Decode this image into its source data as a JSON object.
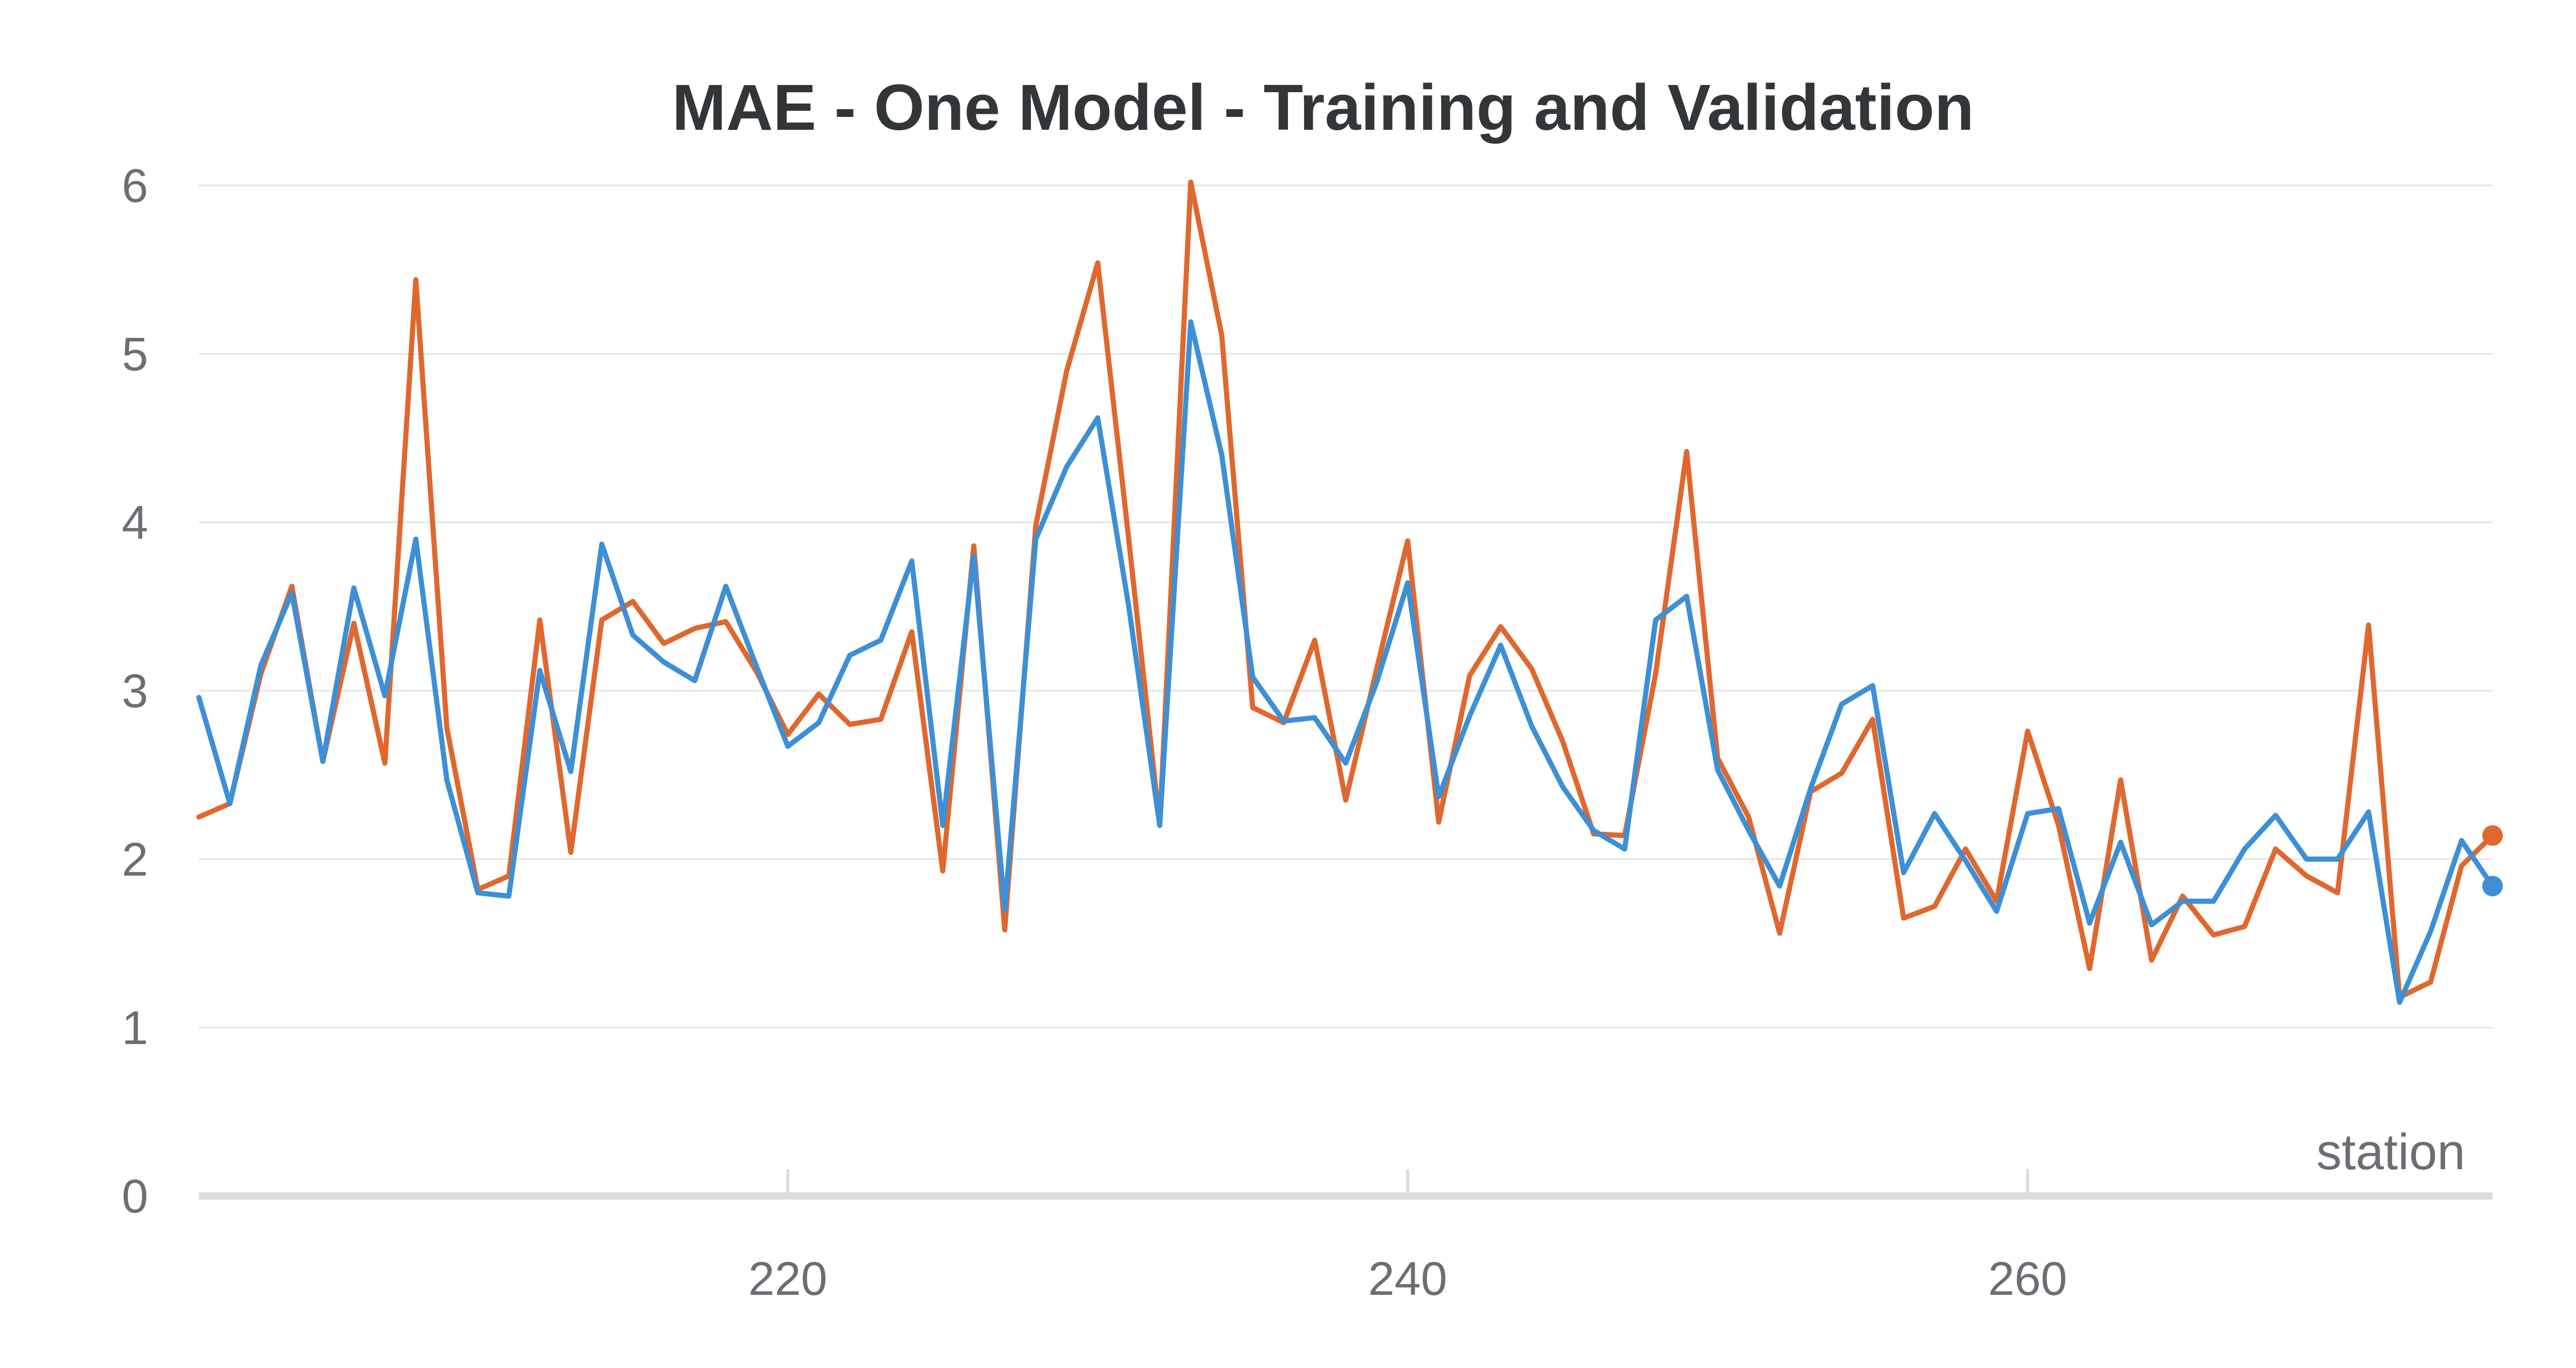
{
  "chart_data": {
    "type": "line",
    "title": "MAE - One Model - Training and Validation",
    "xlabel": "station",
    "ylabel": "",
    "xlim": [
      201,
      275
    ],
    "ylim": [
      0,
      6
    ],
    "yticks": [
      0,
      1,
      2,
      3,
      4,
      5,
      6
    ],
    "xticks": [
      220,
      240,
      260
    ],
    "grid": true,
    "legend": "none",
    "x": [
      201,
      202,
      203,
      204,
      205,
      206,
      207,
      208,
      209,
      210,
      211,
      212,
      213,
      214,
      215,
      216,
      217,
      218,
      219,
      220,
      221,
      222,
      223,
      224,
      225,
      226,
      227,
      228,
      229,
      230,
      231,
      232,
      233,
      234,
      235,
      236,
      237,
      238,
      239,
      240,
      241,
      242,
      243,
      244,
      245,
      246,
      247,
      248,
      249,
      250,
      251,
      252,
      253,
      254,
      255,
      256,
      257,
      258,
      259,
      260,
      261,
      262,
      263,
      264,
      265,
      266,
      267,
      268,
      269,
      270,
      271,
      272,
      273,
      274,
      275
    ],
    "series": [
      {
        "color": "#e0672d",
        "values": [
          2.25,
          2.33,
          3.1,
          3.62,
          2.58,
          3.4,
          2.57,
          5.44,
          2.78,
          1.82,
          1.9,
          3.42,
          2.04,
          3.42,
          3.53,
          3.28,
          3.37,
          3.41,
          3.11,
          2.74,
          2.98,
          2.8,
          2.83,
          3.35,
          1.93,
          3.86,
          1.58,
          3.98,
          4.9,
          5.54,
          3.9,
          2.2,
          6.02,
          5.11,
          2.9,
          2.81,
          3.3,
          2.35,
          3.13,
          3.89,
          2.22,
          3.09,
          3.38,
          3.13,
          2.7,
          2.15,
          2.14,
          3.1,
          4.42,
          2.6,
          2.25,
          1.56,
          2.4,
          2.51,
          2.83,
          1.65,
          1.72,
          2.06,
          1.75,
          2.76,
          2.2,
          1.35,
          2.47,
          1.4,
          1.78,
          1.55,
          1.6,
          2.06,
          1.9,
          1.8,
          3.39,
          1.18,
          1.27,
          1.96,
          2.14
        ]
      },
      {
        "color": "#3d8fd6",
        "values": [
          2.96,
          2.33,
          3.15,
          3.58,
          2.58,
          3.61,
          2.97,
          3.9,
          2.47,
          1.8,
          1.78,
          3.12,
          2.52,
          3.87,
          3.33,
          3.17,
          3.06,
          3.62,
          3.14,
          2.67,
          2.81,
          3.21,
          3.3,
          3.77,
          2.2,
          3.8,
          1.7,
          3.9,
          4.33,
          4.62,
          3.5,
          2.2,
          5.19,
          4.4,
          3.08,
          2.82,
          2.84,
          2.57,
          3.05,
          3.64,
          2.37,
          2.85,
          3.27,
          2.79,
          2.43,
          2.17,
          2.06,
          3.42,
          3.56,
          2.53,
          2.17,
          1.84,
          2.42,
          2.92,
          3.03,
          1.92,
          2.27,
          1.99,
          1.69,
          2.27,
          2.3,
          1.62,
          2.1,
          1.61,
          1.75,
          1.75,
          2.06,
          2.26,
          2.0,
          2.0,
          2.28,
          1.15,
          1.57,
          2.11,
          1.84
        ]
      }
    ]
  }
}
